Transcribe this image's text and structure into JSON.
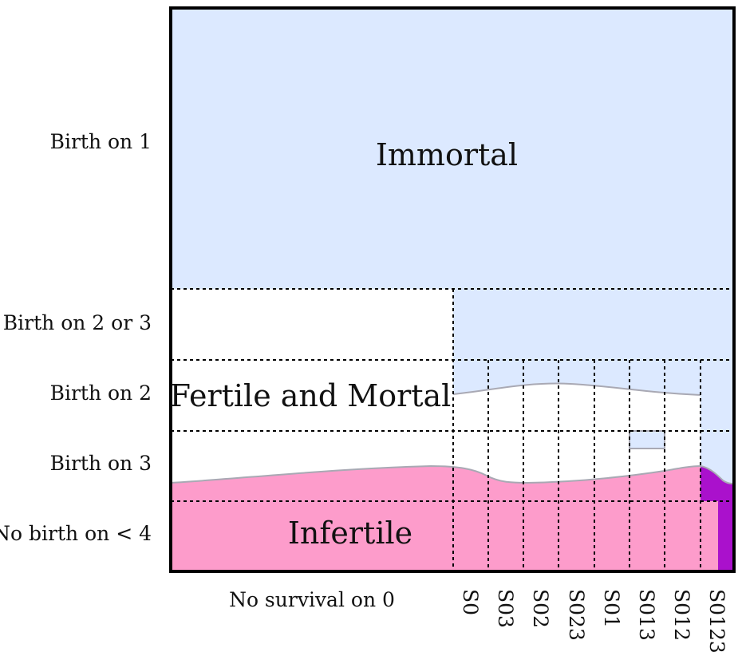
{
  "diagram": {
    "row_labels": [
      "Birth on 1",
      "Birth on 2 or 3",
      "Birth on 2",
      "Birth on 3",
      "No birth on < 4"
    ],
    "left_column_label": "No survival on 0",
    "column_labels": [
      "S0",
      "S03",
      "S02",
      "S023",
      "S01",
      "S013",
      "S012",
      "S0123"
    ],
    "regions": {
      "immortal": "Immortal",
      "fertile_mortal": "Fertile and Mortal",
      "infertile": "Infertile"
    },
    "colors": {
      "immortal": "#dce9ff",
      "fertile_mortal": "#ffffff",
      "infertile": "#fd9ccb",
      "corner": "#aa11cc",
      "boundary": "#a9a9b4",
      "grid": "#000000"
    }
  }
}
